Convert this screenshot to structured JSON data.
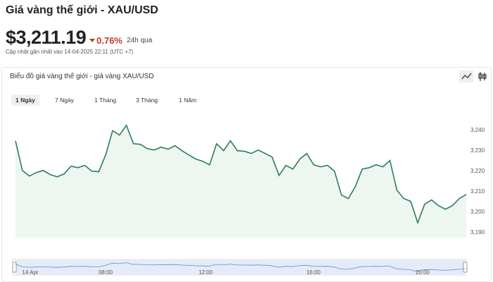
{
  "header": {
    "title": "Giá vàng thế giới - XAU/USD",
    "price": "$3,211.19",
    "change": "0.76%",
    "period": "24h qua",
    "updated": "Cập nhật gần nhất vào 14-04-2025 22:11 (UTC +7)"
  },
  "card": {
    "title": "Biểu đồ giá vàng thế giới - giá vàng XAU/USD",
    "tabs": [
      "1 Ngày",
      "7 Ngày",
      "1 Tháng",
      "3 Tháng",
      "1 Năm"
    ]
  },
  "chart_data": {
    "type": "area",
    "color": "#2e7d5b",
    "values": [
      3234.8,
      3220.3,
      3217.6,
      3219.3,
      3220.3,
      3218.3,
      3217.2,
      3218.6,
      3222.4,
      3221.7,
      3222.8,
      3220,
      3219.7,
      3227.9,
      3239.7,
      3237.6,
      3242.4,
      3233.4,
      3233.1,
      3231,
      3230.3,
      3231.7,
      3230.7,
      3232.4,
      3230,
      3227.9,
      3225.9,
      3224.8,
      3223.1,
      3233.4,
      3230,
      3234.8,
      3230,
      3229.7,
      3228.6,
      3230.3,
      3228.6,
      3226.9,
      3217.9,
      3222.8,
      3221,
      3225.9,
      3228.6,
      3223.1,
      3222.1,
      3222.8,
      3220,
      3208.3,
      3206.6,
      3212.4,
      3221,
      3221.7,
      3223.1,
      3222.1,
      3225.2,
      3210.7,
      3206.6,
      3205.2,
      3194.8,
      3203.8,
      3205.9,
      3203.1,
      3201.4,
      3203.1,
      3206.6,
      3208.6
    ],
    "ylim": [
      3187.5,
      3248.5
    ],
    "yticks": [
      {
        "value": 3190,
        "label": "3,190"
      },
      {
        "value": 3200,
        "label": "3,200"
      },
      {
        "value": 3210,
        "label": "3,210"
      },
      {
        "value": 3220,
        "label": "3,220"
      },
      {
        "value": 3230,
        "label": "3,230"
      },
      {
        "value": 3240,
        "label": "3,240"
      }
    ],
    "navigator_labels": [
      "14 Apr",
      "08:00",
      "12:00",
      "16:00",
      "20:00"
    ]
  }
}
